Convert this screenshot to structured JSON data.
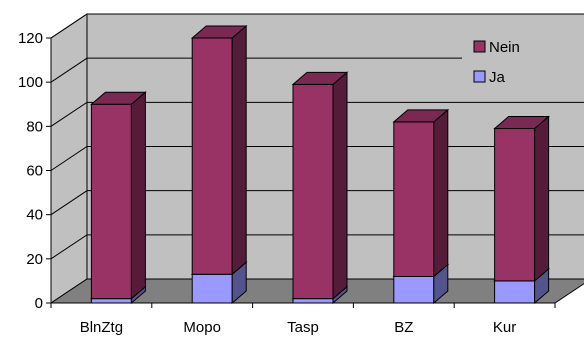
{
  "chart_data": {
    "type": "bar",
    "stacked": true,
    "three_d": true,
    "categories": [
      "BlnZtg",
      "Mopo",
      "Tasp",
      "BZ",
      "Kur"
    ],
    "series": [
      {
        "name": "Ja",
        "values": [
          2,
          13,
          2,
          12,
          10
        ],
        "color": "#9999ff"
      },
      {
        "name": "Nein",
        "values": [
          88,
          107,
          97,
          70,
          69
        ],
        "color": "#993366"
      }
    ],
    "ylim": [
      0,
      120
    ],
    "yticks": [
      "0",
      "20",
      "40",
      "60",
      "80",
      "100",
      "120"
    ],
    "grid": true,
    "legend_position": "top-right",
    "wall_color": "#c0c0c0",
    "floor_color": "#808080"
  }
}
